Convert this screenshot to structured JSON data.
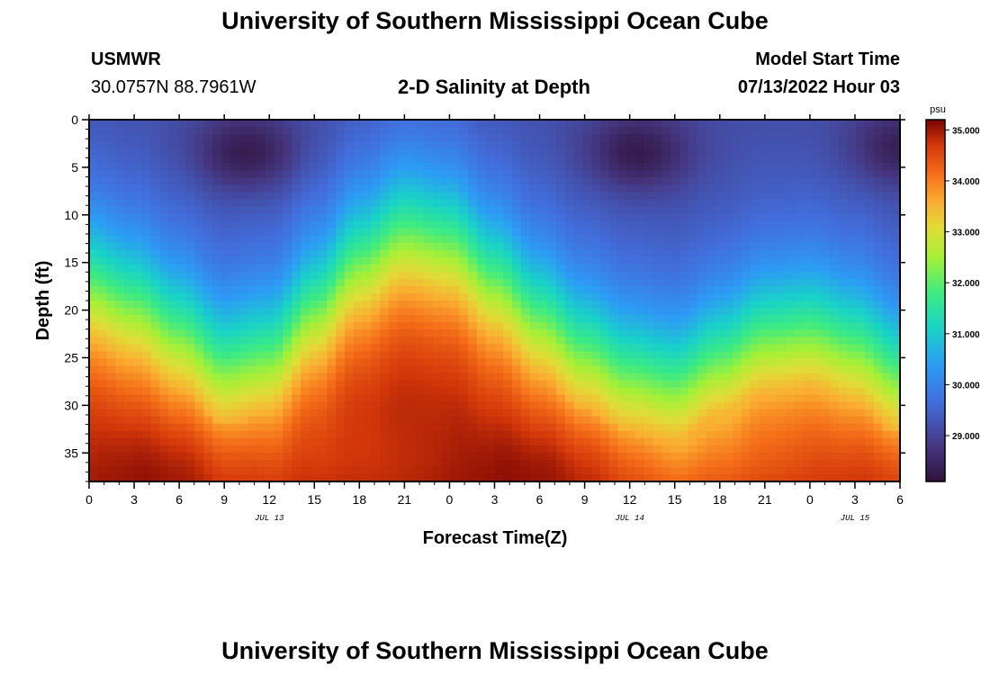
{
  "page": {
    "title": "University of Southern Mississippi Ocean Cube",
    "station": "USMWR",
    "coordinates": "30.0757N  88.7961W",
    "subtitle": "2-D Salinity at Depth",
    "model_start_label": "Model Start Time",
    "model_start_value": "07/13/2022 Hour 03",
    "footer_title": "University of Southern Mississippi Ocean Cube"
  },
  "chart_data": {
    "type": "heatmap",
    "title": "2-D Salinity at Depth",
    "xlabel": "Forecast Time(Z)",
    "ylabel": "Depth (ft)",
    "x_hours_range": [
      0,
      54
    ],
    "y_range": [
      0,
      38
    ],
    "y_inverted": true,
    "x_ticks": [
      "0",
      "3",
      "6",
      "9",
      "12",
      "15",
      "18",
      "21",
      "0",
      "3",
      "6",
      "9",
      "12",
      "15",
      "18",
      "21",
      "0",
      "3",
      "6"
    ],
    "y_ticks": [
      0,
      5,
      10,
      15,
      20,
      25,
      30,
      35
    ],
    "date_labels": [
      {
        "text": "JUL 13",
        "hour": 12
      },
      {
        "text": "JUL 14",
        "hour": 36
      },
      {
        "text": "JUL 15",
        "hour": 51
      }
    ],
    "colorbar": {
      "unit": "psu",
      "range": [
        28.1,
        35.2
      ],
      "ticks": [
        "29.000",
        "30.000",
        "31.000",
        "32.000",
        "33.000",
        "34.000",
        "35.000"
      ]
    },
    "field_model": {
      "halocline_depth_ft": {
        "hours": [
          0,
          3,
          6,
          9,
          12,
          15,
          18,
          21,
          24,
          27,
          30,
          33,
          36,
          39,
          42,
          45,
          48,
          51,
          54
        ],
        "values": [
          17.5,
          19.5,
          22.5,
          26,
          25,
          20,
          15,
          12,
          13,
          17,
          21,
          24.5,
          27,
          28,
          25.5,
          23,
          22.5,
          24,
          27
        ]
      },
      "low_salinity_cores": [
        {
          "hour": 10.5,
          "depth_ft": 3.5,
          "salinity_psu": 28.2
        },
        {
          "hour": 36.5,
          "depth_ft": 3.5,
          "salinity_psu": 28.2
        },
        {
          "hour": 54,
          "depth_ft": 3,
          "salinity_psu": 28.3
        }
      ],
      "surface_salinity_psu": 29.1,
      "deep_salinity_psu": 35.1
    }
  }
}
